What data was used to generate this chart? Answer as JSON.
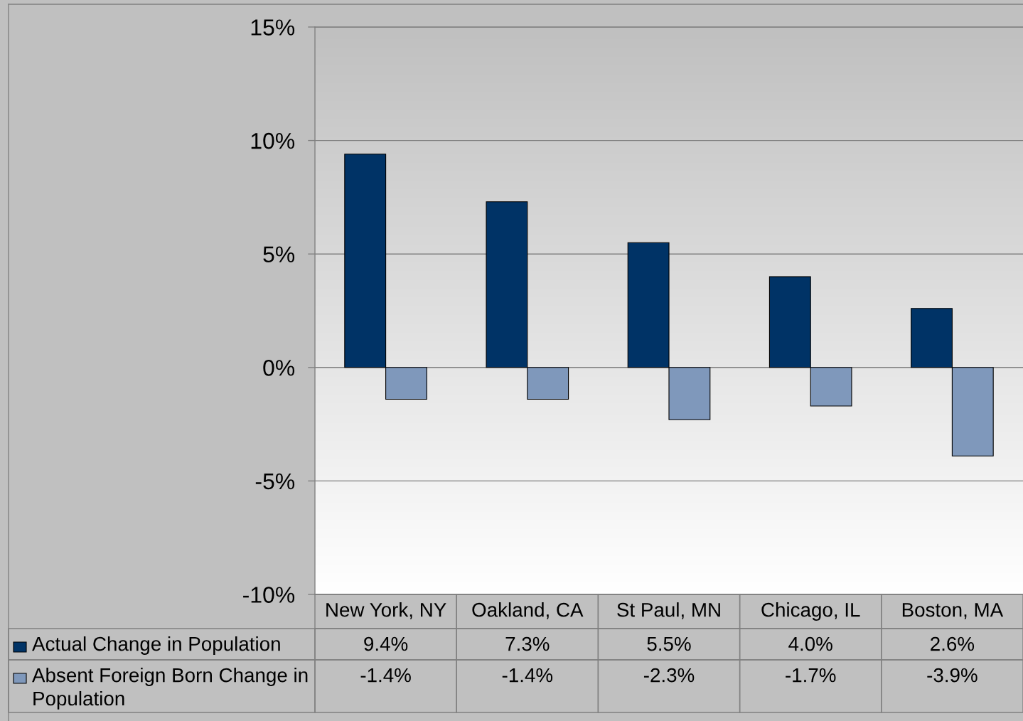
{
  "chart_data": {
    "type": "bar",
    "categories": [
      "New York, NY",
      "Oakland, CA",
      "St Paul, MN",
      "Chicago, IL",
      "Boston, MA"
    ],
    "series": [
      {
        "name": "Actual Change in Population",
        "color": "#003366",
        "values": [
          9.4,
          7.3,
          5.5,
          4.0,
          2.6
        ],
        "value_labels": [
          "9.4%",
          "7.3%",
          "5.5%",
          "4.0%",
          "2.6%"
        ]
      },
      {
        "name": "Absent Foreign Born Change in Population",
        "color": "#7f98bb",
        "values": [
          -1.4,
          -1.4,
          -2.3,
          -1.7,
          -3.9
        ],
        "value_labels": [
          "-1.4%",
          "-1.4%",
          "-2.3%",
          "-1.7%",
          "-3.9%"
        ]
      }
    ],
    "ylim": [
      -10,
      15
    ],
    "yticks": [
      {
        "value": -10,
        "label": "-10%"
      },
      {
        "value": -5,
        "label": "-5%"
      },
      {
        "value": 0,
        "label": "0%"
      },
      {
        "value": 5,
        "label": "5%"
      },
      {
        "value": 10,
        "label": "10%"
      },
      {
        "value": 15,
        "label": "15%"
      }
    ],
    "grid": "y",
    "legend": "bottom"
  }
}
